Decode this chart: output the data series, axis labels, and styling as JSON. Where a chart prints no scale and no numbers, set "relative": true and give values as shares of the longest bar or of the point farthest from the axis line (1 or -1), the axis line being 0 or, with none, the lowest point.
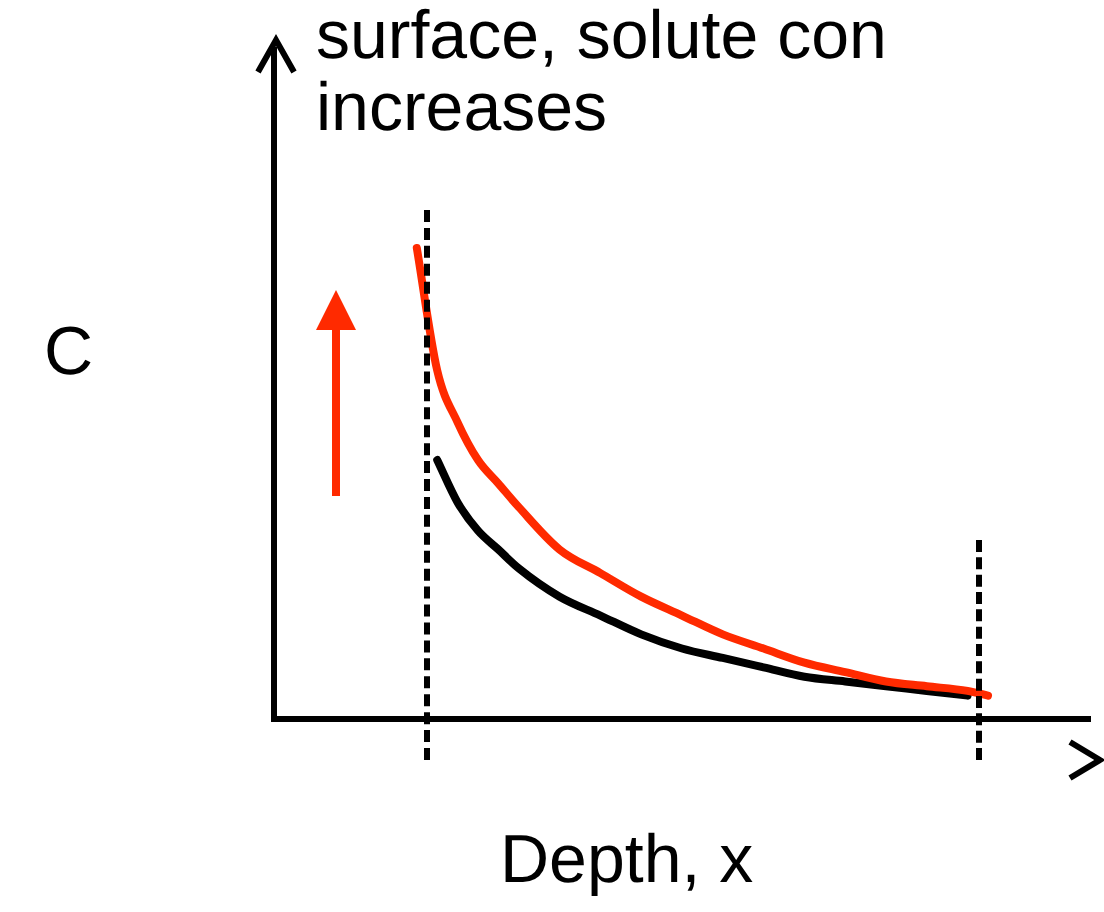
{
  "chart_data": {
    "type": "line",
    "relative": true,
    "xlabel": "Depth, x",
    "ylabel": "C",
    "annotations": [
      "surface, solute con",
      "increases"
    ],
    "legend": false,
    "marker": "none",
    "line_style": "solid",
    "categories": [
      null,
      null,
      null,
      null,
      null,
      null,
      null,
      null,
      null,
      null,
      null,
      null,
      null,
      null,
      null,
      null,
      null,
      null,
      null,
      null,
      null,
      null,
      null,
      null,
      null,
      null,
      null,
      null,
      null,
      null,
      null,
      null,
      null,
      null,
      null,
      null,
      null,
      null,
      null,
      null,
      null
    ],
    "series": [
      {
        "color": "#ff2a00",
        "values": [
          null,
          null,
          null,
          null,
          null,
          null,
          null,
          1.0,
          0.74,
          0.63,
          0.55,
          0.5,
          0.45,
          null,
          0.36,
          null,
          0.31,
          null,
          0.26,
          null,
          0.22,
          null,
          0.18,
          null,
          0.15,
          null,
          0.12,
          null,
          0.1,
          null,
          0.08,
          null,
          0.07,
          null,
          0.06,
          0.05,
          null,
          null,
          null,
          null,
          null
        ]
      },
      {
        "color": "#000000",
        "values": [
          null,
          null,
          null,
          null,
          null,
          null,
          null,
          null,
          0.55,
          0.46,
          0.4,
          0.36,
          0.32,
          null,
          0.26,
          null,
          0.22,
          null,
          0.18,
          null,
          0.15,
          null,
          0.13,
          null,
          0.11,
          null,
          0.09,
          null,
          0.08,
          null,
          0.07,
          null,
          0.06,
          null,
          0.05,
          null,
          null,
          null,
          null,
          null,
          null
        ]
      }
    ]
  }
}
